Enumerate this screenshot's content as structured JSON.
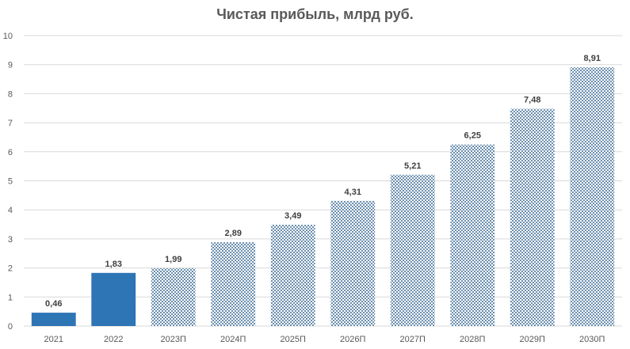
{
  "chart_data": {
    "type": "bar",
    "title": "Чистая прибыль, млрд руб.",
    "xlabel": "",
    "ylabel": "",
    "categories": [
      "2021",
      "2022",
      "2023П",
      "2024П",
      "2025П",
      "2026П",
      "2027П",
      "2028П",
      "2029П",
      "2030П"
    ],
    "values": [
      0.46,
      1.83,
      1.99,
      2.89,
      3.49,
      4.31,
      5.21,
      6.25,
      7.48,
      8.91
    ],
    "value_labels": [
      "0,46",
      "1,83",
      "1,99",
      "2,89",
      "3,49",
      "4,31",
      "5,21",
      "6,25",
      "7,48",
      "8,91"
    ],
    "bar_styles": [
      "solid",
      "solid",
      "hatched",
      "hatched",
      "hatched",
      "hatched",
      "hatched",
      "hatched",
      "hatched",
      "hatched"
    ],
    "ylim": [
      0,
      10
    ],
    "yticks": [
      0,
      1,
      2,
      3,
      4,
      5,
      6,
      7,
      8,
      9,
      10
    ],
    "grid": true,
    "legend": "none",
    "colors": {
      "solid": "#2e75b6",
      "hatch_fg": "#6b8fb0",
      "hatch_bg": "#ffffff",
      "grid": "#d9d9d9",
      "tick_text": "#595959",
      "label_text": "#404040"
    }
  }
}
